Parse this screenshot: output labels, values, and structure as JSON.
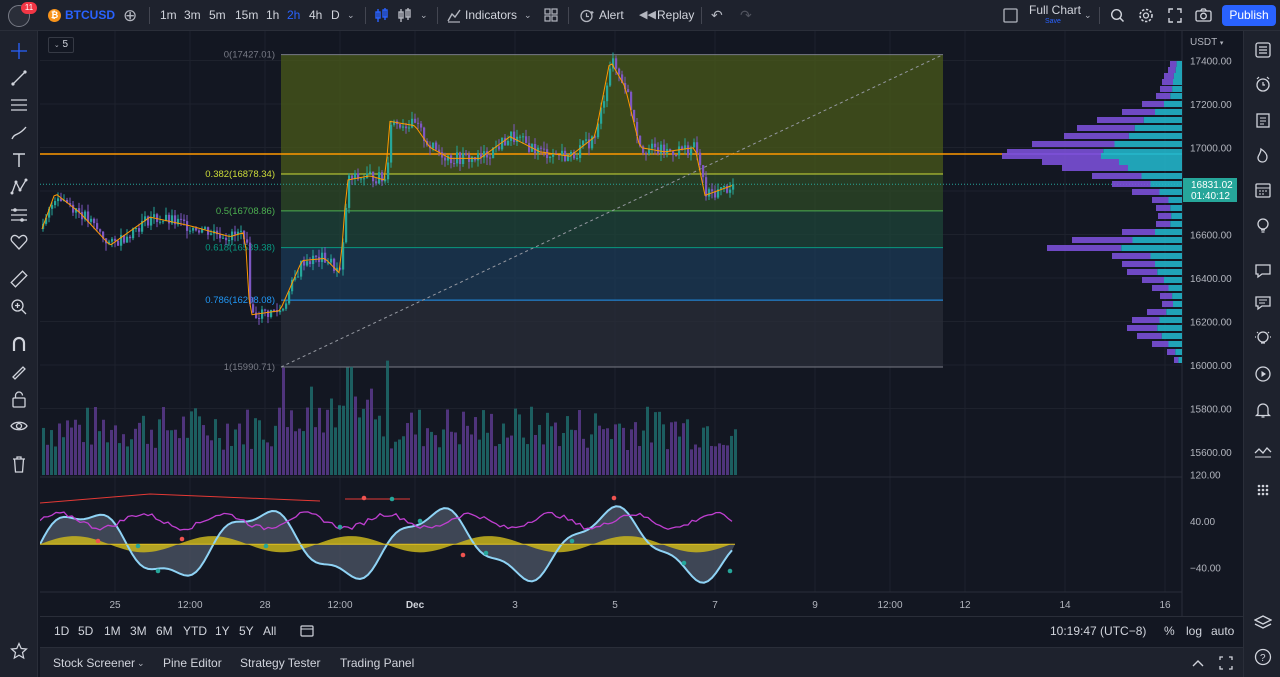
{
  "topbar": {
    "notifications": "11",
    "coin_symbol": "₿",
    "symbol": "BTCUSD",
    "intervals": [
      "1m",
      "3m",
      "5m",
      "15m",
      "1h",
      "2h",
      "4h",
      "D"
    ],
    "active_interval": "2h",
    "indicators_label": "Indicators",
    "alert_label": "Alert",
    "replay_label": "Replay",
    "layout_name": "Full Chart",
    "layout_sub": "Save",
    "publish_label": "Publish"
  },
  "chart": {
    "interval_badge": "5",
    "currency": "USDT",
    "last_price": "16831.02",
    "countdown": "01:40:12",
    "price_ticks": [
      "17400.00",
      "17200.00",
      "17000.00",
      "16600.00",
      "16400.00",
      "16200.00",
      "16000.00",
      "15800.00",
      "15600.00"
    ],
    "osc_ticks": [
      "120.00",
      "40.00",
      "−40.00"
    ],
    "time_ticks": [
      "25",
      "12:00",
      "28",
      "12:00",
      "Dec",
      "3",
      "5",
      "7",
      "9",
      "12:00",
      "12",
      "14",
      "16"
    ],
    "fib_levels": [
      {
        "label": "0(17427.01)",
        "ratio": 0,
        "price": 17427.01,
        "color": "#787b86"
      },
      {
        "label": "0.382(16878.34)",
        "ratio": 0.382,
        "price": 16878.34,
        "color": "#cddc39"
      },
      {
        "label": "0.5(16708.86)",
        "ratio": 0.5,
        "price": 16708.86,
        "color": "#4caf50"
      },
      {
        "label": "0.618(16539.38)",
        "ratio": 0.618,
        "price": 16539.38,
        "color": "#089981"
      },
      {
        "label": "0.786(16298.08)",
        "ratio": 0.786,
        "price": 16298.08,
        "color": "#2196f3"
      },
      {
        "label": "1(15990.71)",
        "ratio": 1,
        "price": 15990.71,
        "color": "#787b86"
      }
    ]
  },
  "bottom": {
    "ranges": [
      "1D",
      "5D",
      "1M",
      "3M",
      "6M",
      "YTD",
      "1Y",
      "5Y",
      "All"
    ],
    "clock": "10:19:47 (UTC−8)",
    "percent": "%",
    "log": "log",
    "auto": "auto"
  },
  "footer": {
    "tabs": [
      "Stock Screener",
      "Pine Editor",
      "Strategy Tester",
      "Trading Panel"
    ]
  },
  "colors": {
    "accent": "#2962ff",
    "up": "#26a69a",
    "down": "#7e57c2",
    "orange_line": "#ff9800"
  }
}
